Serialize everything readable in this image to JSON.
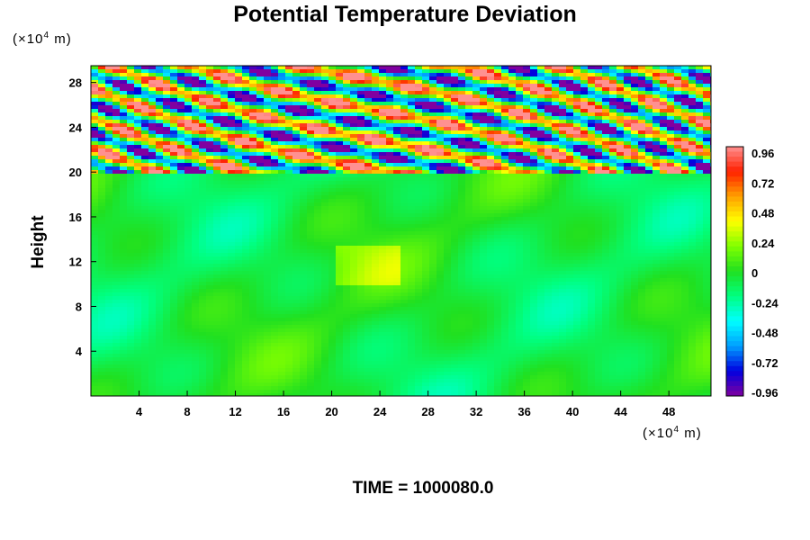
{
  "chart_data": {
    "type": "heatmap",
    "title": "Potential Temperature Deviation",
    "ylabel": "Height",
    "xlabel": "",
    "y_unit": "m",
    "x_unit": "m",
    "unit_prefix": "(×10",
    "unit_exp": "4",
    "x_ticks": [
      4,
      8,
      12,
      16,
      20,
      24,
      28,
      32,
      36,
      40,
      44,
      48
    ],
    "y_ticks": [
      4,
      8,
      12,
      16,
      20,
      24,
      28
    ],
    "xlim": [
      0,
      51.5
    ],
    "ylim": [
      0,
      29.5
    ],
    "colorbar_ticks": [
      "0.96",
      "0.72",
      "0.48",
      "0.24",
      "0",
      "-0.24",
      "-0.48",
      "-0.72",
      "-0.96"
    ],
    "colorbar_range": [
      -1.0,
      1.0
    ],
    "colormap": [
      "#8000a0",
      "#0000e0",
      "#00a0ff",
      "#00ffff",
      "#00ff80",
      "#20e020",
      "#80ff00",
      "#ffff00",
      "#ffa000",
      "#ff2000",
      "#ff9090"
    ],
    "field_regions": [
      {
        "y_range": [
          0,
          19.8
        ],
        "description_value": "near zero, weak perturbations"
      },
      {
        "y_range": [
          19.8,
          29.5
        ],
        "description_value": "strong oscillations"
      }
    ],
    "legend_position": "right"
  },
  "footer": {
    "time_label": "TIME = 1000080.0"
  }
}
